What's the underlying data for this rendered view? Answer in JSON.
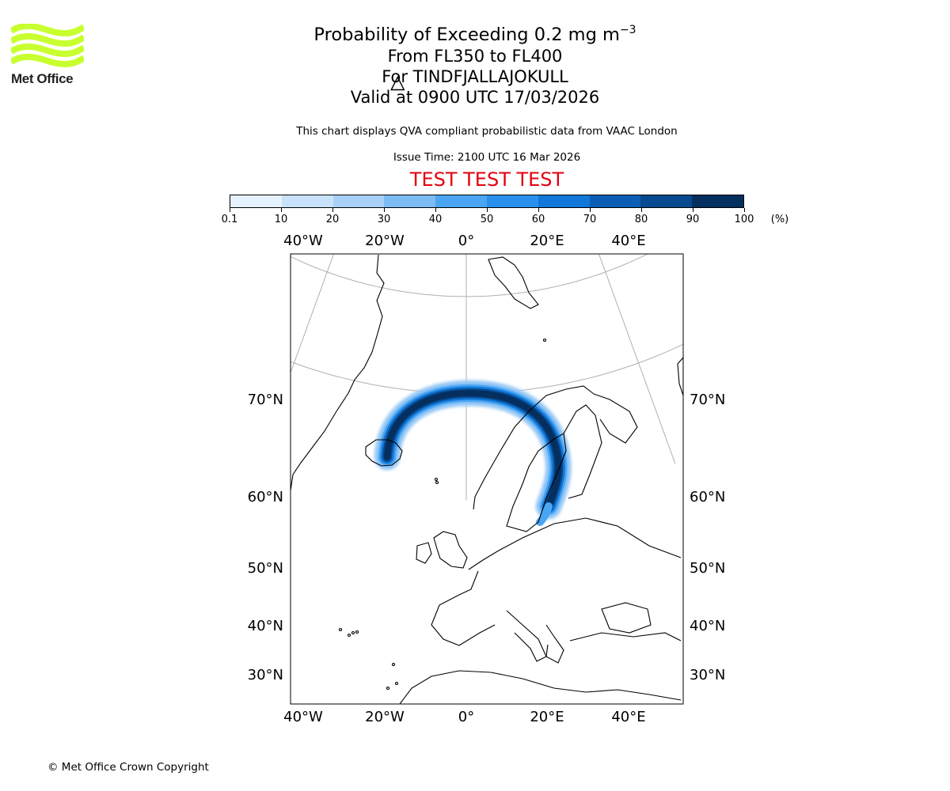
{
  "logo": {
    "text": "Met Office",
    "color": "#c8ff2e"
  },
  "header": {
    "title_prefix": "Probability of Exceeding 0.2 mg m",
    "title_exponent": "−3",
    "flight_levels": "From FL350 to FL400",
    "volcano": "For TINDFJALLAJOKULL",
    "valid_time": "Valid at 0900 UTC 17/03/2026",
    "note": "This chart displays QVA compliant probabilistic data from VAAC London",
    "issue_time": "Issue Time: 2100 UTC 16 Mar 2026",
    "test_banner": "TEST TEST TEST"
  },
  "colorbar": {
    "ticks": [
      "0.1",
      "10",
      "20",
      "30",
      "40",
      "50",
      "60",
      "70",
      "80",
      "90",
      "100"
    ],
    "unit": "(%)",
    "colors": [
      "#e6f2ff",
      "#c9e2fb",
      "#a9d1f7",
      "#7cbcf4",
      "#4aa5f2",
      "#2a90ee",
      "#1177d8",
      "#0a5fb5",
      "#074a8f",
      "#042f5f"
    ]
  },
  "map": {
    "projection": "polar stereographic",
    "lon_labels": [
      "40°W",
      "20°W",
      "0°",
      "20°E",
      "40°E"
    ],
    "lat_labels": [
      "70°N",
      "60°N",
      "50°N",
      "40°N",
      "30°N"
    ],
    "lon_values": [
      -40,
      -20,
      0,
      20,
      40
    ],
    "lat_values": [
      70,
      60,
      50,
      40,
      30
    ],
    "gridlines": true,
    "coastlines": true,
    "plume": {
      "source_lon": -19.6,
      "source_lat": 63.6,
      "source_label": "Volcano location (triangle)",
      "max_probability_percent": 100
    }
  },
  "footer": {
    "copyright": "© Met Office Crown Copyright"
  }
}
